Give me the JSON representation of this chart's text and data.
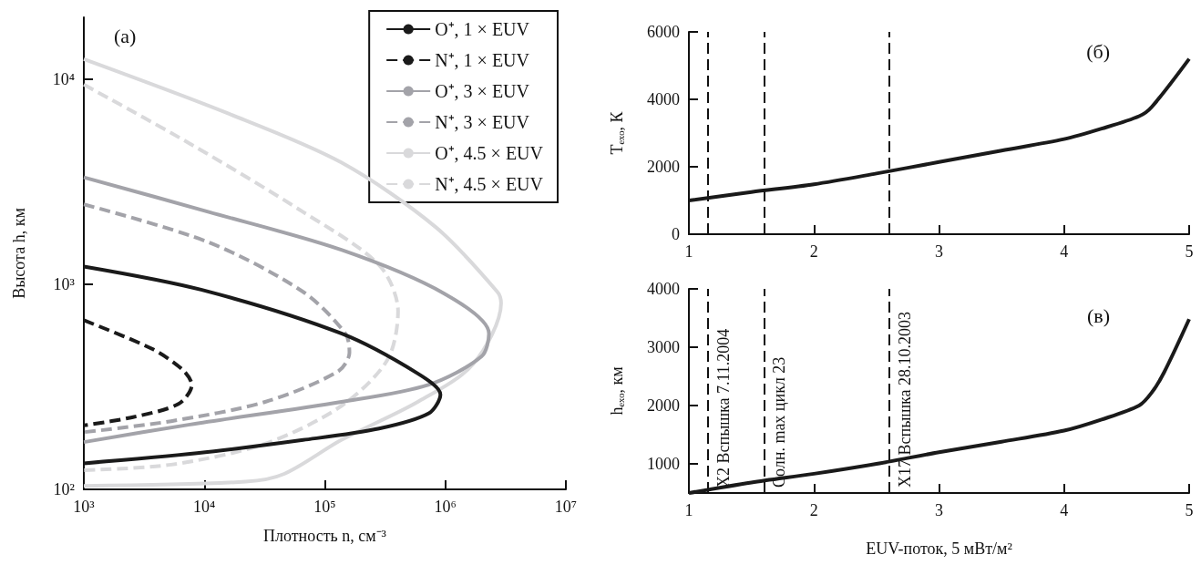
{
  "chart_data": [
    {
      "type": "line",
      "xlabel": "Плотность n, см⁻³",
      "ylabel": "Высота h, км",
      "log": "xy",
      "marker": "none",
      "legend": "top right",
      "annotations": [
        "(а)"
      ],
      "xlim": [
        1000,
        10000000
      ],
      "xticks": [
        {
          "value": 1000,
          "label": "10³"
        },
        {
          "value": 10000,
          "label": "10⁴"
        },
        {
          "value": 100000,
          "label": "10⁵"
        },
        {
          "value": 1000000,
          "label": "10⁶"
        },
        {
          "value": 10000000,
          "label": "10⁷"
        }
      ],
      "ylim": [
        100,
        20000
      ],
      "yticks": [
        {
          "value": 100,
          "label": "10²"
        },
        {
          "value": 1000,
          "label": "10³"
        },
        {
          "value": 10000,
          "label": "10⁴"
        }
      ],
      "series": [
        {
          "name": "O⁺, 1 × EUV",
          "color": "#1a1a1a",
          "line_style": "solid",
          "x": [
            1000,
            9400,
            137000,
            590000,
            910000,
            730000,
            282000,
            66000,
            8700,
            1000
          ],
          "values": [
            1220,
            940,
            575,
            367,
            290,
            235,
            198,
            174,
            150,
            134
          ]
        },
        {
          "name": "N⁺, 1 × EUV",
          "color": "#1a1a1a",
          "line_style": "dashed",
          "x": [
            1000,
            3680,
            6600,
            7870,
            6100,
            2560,
            1000
          ],
          "values": [
            667,
            484,
            383,
            323,
            261,
            225,
            205
          ]
        },
        {
          "name": "O⁺, 3 × EUV",
          "color": "#a3a3a9",
          "line_style": "solid",
          "x": [
            1000,
            10900,
            137000,
            980000,
            2300000,
            2000000,
            720000,
            137000,
            7600,
            1000
          ],
          "values": [
            3320,
            2250,
            1470,
            900,
            575,
            445,
            323,
            267,
            207,
            170
          ]
        },
        {
          "name": "N⁺, 3 × EUV",
          "color": "#a3a3a9",
          "line_style": "dashed",
          "x": [
            1000,
            10900,
            66000,
            148000,
            160000,
            128000,
            32000,
            5300,
            1000
          ],
          "values": [
            2450,
            1600,
            918,
            575,
            464,
            375,
            267,
            215,
            190
          ]
        },
        {
          "name": "O⁺, 4.5 × EUV",
          "color": "#d9d9db",
          "line_style": "solid",
          "x": [
            1000,
            15700,
            137000,
            830000,
            2700000,
            2900000,
            1700000,
            590000,
            137000,
            46000,
            22000,
            1000
          ],
          "values": [
            12500,
            6800,
            3920,
            1900,
            918,
            807,
            408,
            267,
            174,
            119,
            109,
            104
          ]
        },
        {
          "name": "N⁺, 4.5 × EUV",
          "color": "#d9d9db",
          "line_style": "dashed",
          "x": [
            1000,
            7600,
            66000,
            282000,
            405000,
            330000,
            137000,
            32000,
            5300,
            1000
          ],
          "values": [
            9400,
            4840,
            2250,
            1240,
            740,
            427,
            255,
            167,
            132,
            124
          ]
        }
      ]
    },
    {
      "type": "line",
      "ylabel": "Tₑₓₒ, К",
      "marker": "none",
      "line_style": "solid",
      "annotations": [
        "(б)"
      ],
      "xlim": [
        1,
        5
      ],
      "xticks": [
        1,
        2,
        3,
        4,
        5
      ],
      "ylim": [
        0,
        6000
      ],
      "yticks": [
        0,
        2000,
        4000,
        6000
      ],
      "ref_lines": [
        {
          "axis": "x",
          "value": 1.15,
          "line_style": "dashed"
        },
        {
          "axis": "x",
          "value": 1.6,
          "line_style": "dashed"
        },
        {
          "axis": "x",
          "value": 2.6,
          "line_style": "dashed"
        }
      ],
      "series": [
        {
          "color": "#1a1a1a",
          "x": [
            1,
            1.5,
            2,
            2.5,
            3,
            3.5,
            4,
            4.3,
            4.6,
            4.7,
            5
          ],
          "values": [
            1000,
            1250,
            1480,
            1800,
            2140,
            2480,
            2820,
            3130,
            3500,
            3770,
            5200
          ]
        }
      ]
    },
    {
      "type": "line",
      "xlabel": "EUV-поток, 5 мВт/м²",
      "ylabel": "hₑₓₒ, км",
      "marker": "none",
      "line_style": "solid",
      "annotations": [
        "(в)"
      ],
      "xlim": [
        1,
        5
      ],
      "xticks": [
        1,
        2,
        3,
        4,
        5
      ],
      "ylim": [
        500,
        4000
      ],
      "yticks": [
        1000,
        2000,
        3000,
        4000
      ],
      "ref_lines": [
        {
          "axis": "x",
          "value": 1.15,
          "label": "X2 Вспышка 7.11.2004",
          "line_style": "dashed"
        },
        {
          "axis": "x",
          "value": 1.6,
          "label": "Солн. max цикл 23",
          "line_style": "dashed"
        },
        {
          "axis": "x",
          "value": 2.6,
          "label": "X17 Вспышка 28.10.2003",
          "line_style": "dashed"
        }
      ],
      "series": [
        {
          "color": "#1a1a1a",
          "x": [
            1,
            1.5,
            2,
            2.5,
            3,
            3.5,
            4,
            4.3,
            4.6,
            4.7,
            4.8,
            5
          ],
          "values": [
            500,
            680,
            830,
            1000,
            1200,
            1380,
            1570,
            1760,
            2000,
            2220,
            2570,
            3480
          ]
        }
      ]
    }
  ]
}
